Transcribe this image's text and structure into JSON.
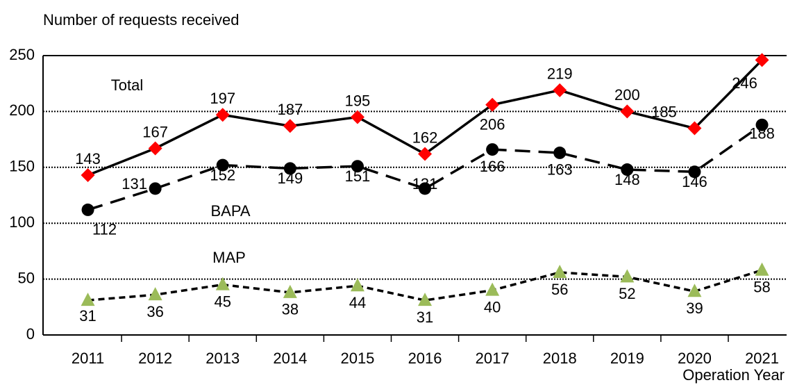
{
  "chart_data": {
    "type": "line",
    "y_axis_label": "Number of requests received",
    "x_axis_label": "Operation Year",
    "categories": [
      "2011",
      "2012",
      "2013",
      "2014",
      "2015",
      "2016",
      "2017",
      "2018",
      "2019",
      "2020",
      "2021"
    ],
    "series": [
      {
        "name": "Total",
        "color": "#ff0000",
        "marker": "diamond",
        "line_style": "solid",
        "values": [
          143,
          167,
          197,
          187,
          195,
          162,
          206,
          219,
          200,
          185,
          246
        ]
      },
      {
        "name": "BAPA",
        "color": "#000000",
        "marker": "circle",
        "line_style": "dashed",
        "values": [
          112,
          131,
          152,
          149,
          151,
          131,
          166,
          163,
          148,
          146,
          188
        ]
      },
      {
        "name": "MAP",
        "color": "#9bbb59",
        "marker": "triangle",
        "line_style": "dashed",
        "values": [
          31,
          36,
          45,
          38,
          44,
          31,
          40,
          56,
          52,
          39,
          58
        ]
      }
    ],
    "ylim": [
      0,
      250
    ],
    "yticks": [
      0,
      50,
      100,
      150,
      200,
      250
    ],
    "grid": true
  }
}
